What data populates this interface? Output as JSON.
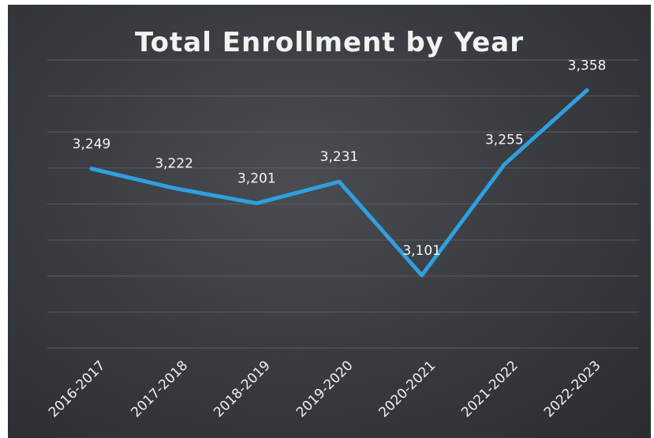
{
  "chart_data": {
    "type": "line",
    "title": "Total Enrollment by Year",
    "categories": [
      "2016-2017",
      "2017-2018",
      "2018-2019",
      "2019-2020",
      "2020-2021",
      "2021-2022",
      "2022-2023"
    ],
    "series": [
      {
        "values": [
          3249,
          3222,
          3201,
          3231,
          3101,
          3255,
          3358
        ],
        "data_labels": [
          "3,249",
          "3,222",
          "3,201",
          "3,231",
          "3,101",
          "3,255",
          "3,358"
        ]
      }
    ],
    "xlabel": "",
    "ylabel": "",
    "ylim": [
      3000,
      3400
    ],
    "grid": true,
    "legend": "none",
    "colors": {
      "line": "#2f9fe0",
      "background": "#3a3d42",
      "gridline": "#5a5d62",
      "text": "#f2f2f2"
    }
  }
}
